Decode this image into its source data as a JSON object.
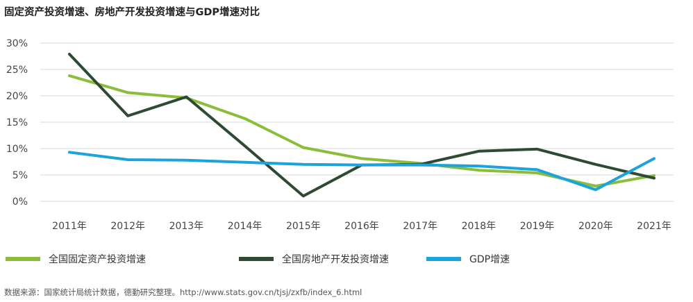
{
  "chart_data": {
    "type": "line",
    "title": "固定资产投资增速、房地产开发投资增速与GDP增速对比",
    "categories": [
      "2011年",
      "2012年",
      "2013年",
      "2014年",
      "2015年",
      "2016年",
      "2017年",
      "2018年",
      "2019年",
      "2020年",
      "2021年"
    ],
    "y_ticks": [
      "0%",
      "5%",
      "10%",
      "15%",
      "20%",
      "25%",
      "30%"
    ],
    "ylim": [
      0,
      30
    ],
    "grid": "horizontal",
    "legend_position": "bottom",
    "series": [
      {
        "name": "全国固定资产投资增速",
        "color": "#8bbd3a",
        "values": [
          23.8,
          20.6,
          19.6,
          15.7,
          10.2,
          8.1,
          7.2,
          5.9,
          5.4,
          2.9,
          4.9
        ]
      },
      {
        "name": "全国房地产开发投资增速",
        "color": "#2e4a32",
        "values": [
          27.9,
          16.2,
          19.8,
          10.5,
          1.0,
          6.9,
          7.0,
          9.5,
          9.9,
          7.0,
          4.4
        ]
      },
      {
        "name": "GDP增速",
        "color": "#1ba3dc",
        "values": [
          9.3,
          7.9,
          7.8,
          7.4,
          7.0,
          6.9,
          6.9,
          6.7,
          6.0,
          2.2,
          8.1
        ]
      }
    ]
  },
  "source": "数据来源：国家统计局统计数据，德勤研究整理。http://www.stats.gov.cn/tjsj/zxfb/index_6.html"
}
